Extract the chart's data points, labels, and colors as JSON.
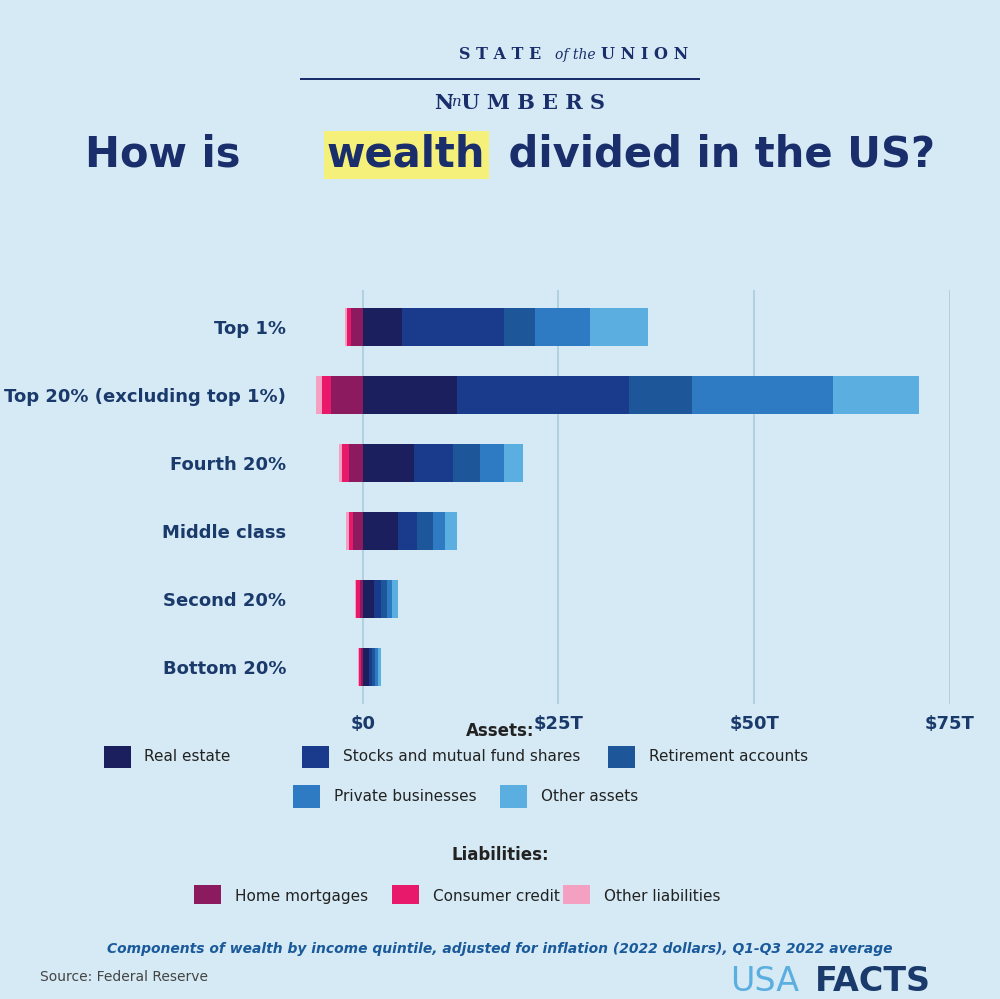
{
  "categories": [
    "Bottom 20%",
    "Second 20%",
    "Middle class",
    "Fourth 20%",
    "Top 20% (excluding top 1%)",
    "Top 1%"
  ],
  "background_color": "#d6eaf5",
  "xlim_min": -8,
  "xlim_max": 75,
  "xticks": [
    0,
    25,
    50,
    75
  ],
  "xtick_labels": [
    "$0",
    "$25T",
    "$50T",
    "$75T"
  ],
  "assets": {
    "Real estate": [
      0.8,
      1.5,
      4.5,
      6.5,
      12.0,
      5.0
    ],
    "Stocks and mutual fund shares": [
      0.4,
      0.8,
      2.5,
      5.0,
      22.0,
      13.0
    ],
    "Retirement accounts": [
      0.4,
      0.8,
      2.0,
      3.5,
      8.0,
      4.0
    ],
    "Private businesses": [
      0.3,
      0.6,
      1.5,
      3.0,
      18.0,
      7.0
    ],
    "Other assets": [
      0.5,
      0.8,
      1.5,
      2.5,
      11.0,
      7.5
    ]
  },
  "liabilities": {
    "Home mortgages": [
      0.2,
      0.4,
      1.2,
      1.8,
      4.0,
      1.5
    ],
    "Consumer credit": [
      0.3,
      0.4,
      0.6,
      0.8,
      1.2,
      0.5
    ],
    "Other liabilities": [
      0.15,
      0.2,
      0.3,
      0.4,
      0.8,
      0.3
    ]
  },
  "asset_colors": {
    "Real estate": "#1b1f5e",
    "Stocks and mutual fund shares": "#1a3a8c",
    "Retirement accounts": "#1e5799",
    "Private businesses": "#2e7bc4",
    "Other assets": "#5baee0"
  },
  "liability_colors": {
    "Home mortgages": "#8b1a5e",
    "Consumer credit": "#e8196a",
    "Other liabilities": "#f4a0c0"
  },
  "axis_color": "#1a3a6c",
  "label_color": "#1a3a6c",
  "grid_color": "#aaccdd",
  "subtitle_color": "#1a5a9a",
  "footer_text_color": "#444444",
  "highlight_color": "#f5f07a",
  "title_color": "#1a2e6c",
  "header_color": "#1a2e6c"
}
